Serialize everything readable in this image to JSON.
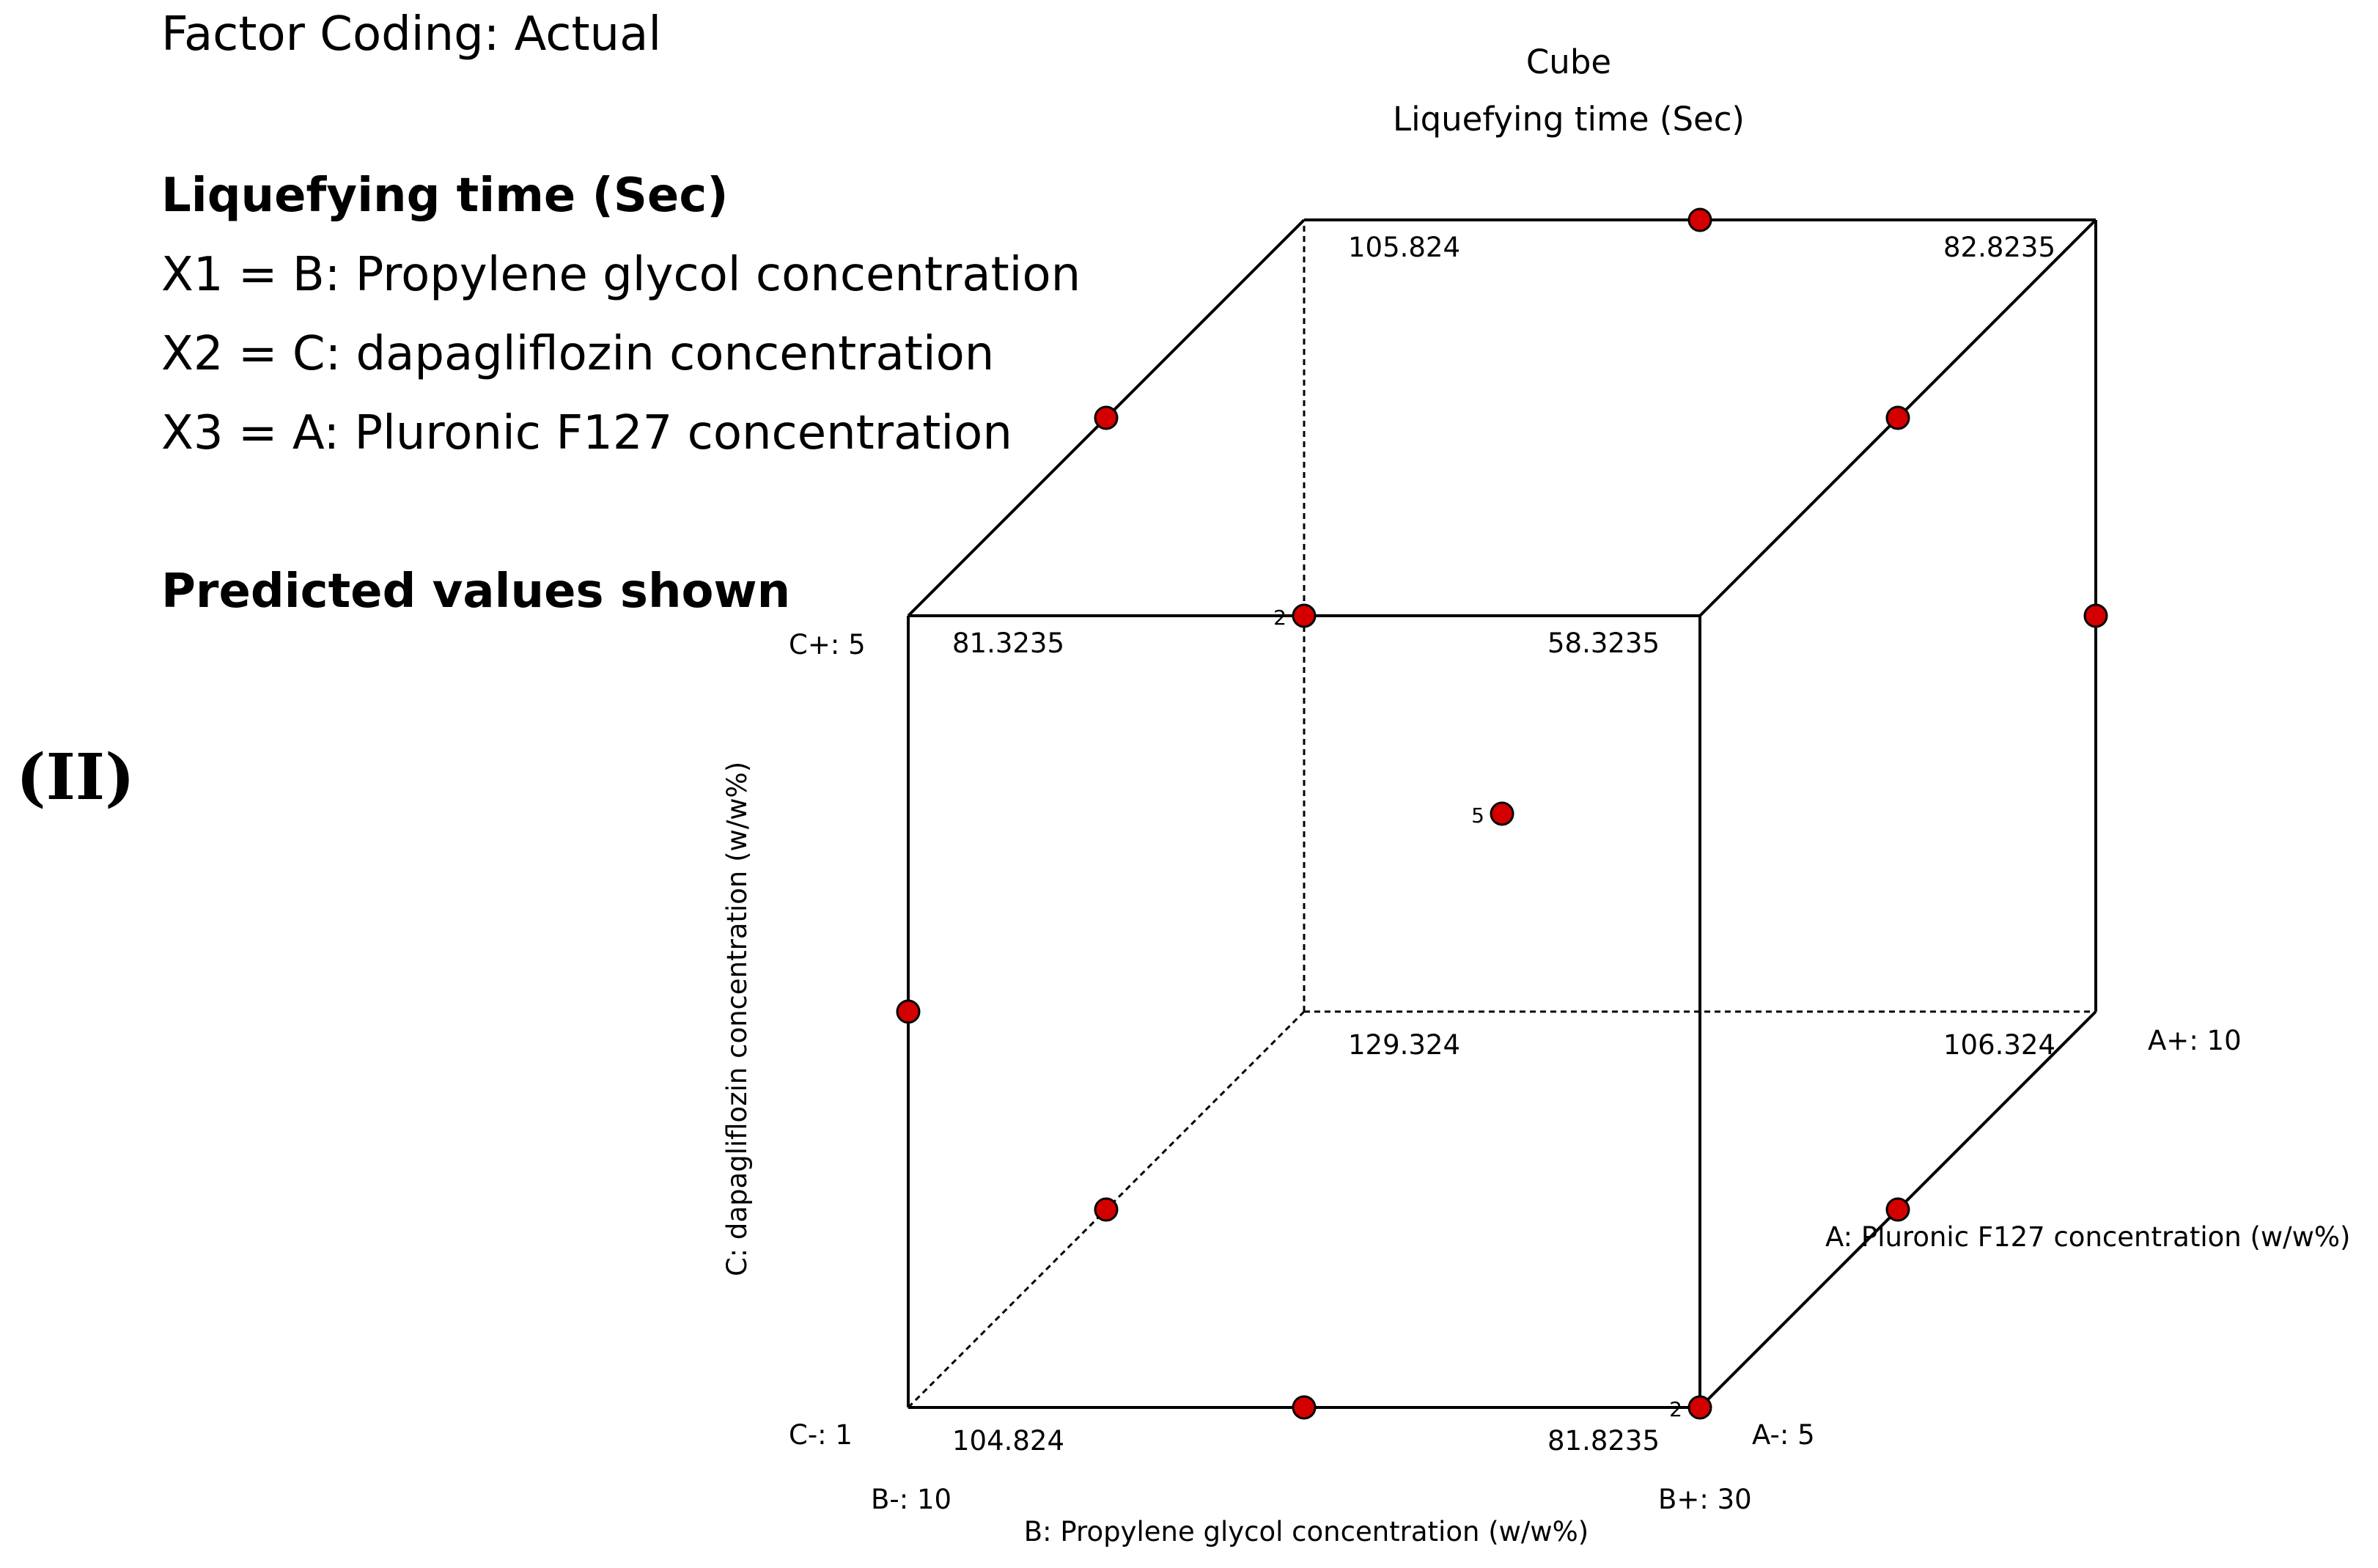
{
  "info": {
    "factor_coding": "Factor Coding: Actual",
    "response": "Liquefying time (Sec)",
    "x1": "X1 = B: Propylene glycol concentration",
    "x2": "X2 = C: dapagliflozin concentration",
    "x3": "X3 = A: Pluronic F127 concentration",
    "predicted": "Predicted values shown"
  },
  "panel_label": "(II)",
  "chart_data": {
    "type": "cube",
    "title": "Cube",
    "subtitle": "Liquefying time (Sec)",
    "axes": {
      "B": {
        "label": "B: Propylene glycol concentration (w/w%)",
        "low": "B-: 10",
        "high": "B+: 30"
      },
      "C": {
        "label": "C: dapagliflozin concentration (w/w%)",
        "low": "C-: 1",
        "high": "C+: 5"
      },
      "A": {
        "label": "A: Pluronic F127 concentration (w/w%)",
        "low": "A-: 5",
        "high": "A+: 10"
      }
    },
    "corners": [
      {
        "A": -1,
        "B": -1,
        "C": -1,
        "value": "104.824"
      },
      {
        "A": -1,
        "B": 1,
        "C": -1,
        "value": "81.8235"
      },
      {
        "A": -1,
        "B": -1,
        "C": 1,
        "value": "81.3235"
      },
      {
        "A": -1,
        "B": 1,
        "C": 1,
        "value": "58.3235"
      },
      {
        "A": 1,
        "B": -1,
        "C": -1,
        "value": "129.324"
      },
      {
        "A": 1,
        "B": 1,
        "C": -1,
        "value": "106.324"
      },
      {
        "A": 1,
        "B": -1,
        "C": 1,
        "value": "105.824"
      },
      {
        "A": 1,
        "B": 1,
        "C": 1,
        "value": "82.8235"
      }
    ],
    "design_points": [
      {
        "A": -1,
        "B": 0,
        "C": -1
      },
      {
        "A": -1,
        "B": -1,
        "C": 0
      },
      {
        "A": -1,
        "B": 0,
        "C": 1,
        "count": "2"
      },
      {
        "A": -1,
        "B": 1,
        "C": -1,
        "count": "2"
      },
      {
        "A": 0,
        "B": -1,
        "C": -1
      },
      {
        "A": 0,
        "B": 1,
        "C": -1
      },
      {
        "A": 0,
        "B": -1,
        "C": 1
      },
      {
        "A": 0,
        "B": 1,
        "C": 1
      },
      {
        "A": 1,
        "B": 0,
        "C": 1
      },
      {
        "A": 1,
        "B": 1,
        "C": 0
      },
      {
        "A": 0,
        "B": 0,
        "C": 0,
        "count": "5"
      }
    ],
    "colors": {
      "point": "#d40000",
      "edge": "#000000"
    }
  }
}
